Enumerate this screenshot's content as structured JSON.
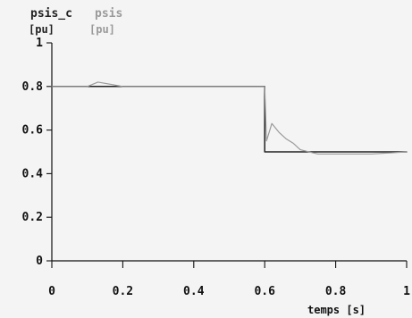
{
  "chart_data": {
    "type": "line",
    "title": "",
    "xlabel": "temps [s]",
    "ylabel": "",
    "xlim": [
      0,
      1
    ],
    "ylim": [
      0,
      1
    ],
    "grid": false,
    "legend_placement": "top-left",
    "x_ticks": [
      "0",
      "0.2",
      "0.4",
      "0.6",
      "0.8",
      "1"
    ],
    "y_ticks": [
      "0",
      "0.2",
      "0.4",
      "0.6",
      "0.8",
      "1"
    ],
    "series": [
      {
        "name": "psis_c",
        "unit": "[pu]",
        "color": "#222222",
        "x": [
          0,
          0.6,
          0.6,
          1
        ],
        "values": [
          0.8,
          0.8,
          0.5,
          0.5
        ]
      },
      {
        "name": "psis",
        "unit": "[pu]",
        "color": "#9a9a9a",
        "x": [
          0,
          0.05,
          0.1,
          0.13,
          0.2,
          0.3,
          0.4,
          0.5,
          0.6,
          0.605,
          0.62,
          0.64,
          0.66,
          0.68,
          0.7,
          0.75,
          0.8,
          0.9,
          1
        ],
        "values": [
          0.8,
          0.8,
          0.8,
          0.82,
          0.8,
          0.8,
          0.8,
          0.8,
          0.8,
          0.55,
          0.63,
          0.59,
          0.56,
          0.54,
          0.51,
          0.49,
          0.49,
          0.49,
          0.5
        ]
      }
    ]
  }
}
